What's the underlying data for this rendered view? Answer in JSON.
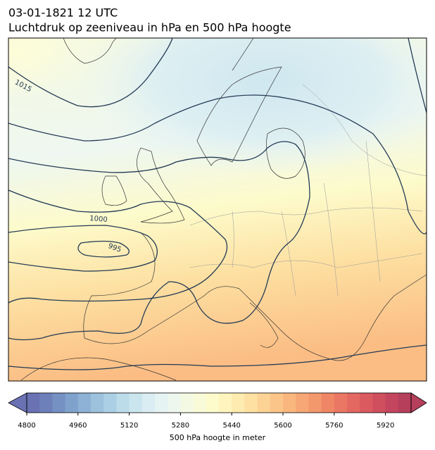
{
  "header": {
    "time": "03-01-1821 12 UTC",
    "title": "Luchtdruk op zeeniveau in hPa en 500 hPa hoogte"
  },
  "isobar_labels": [
    "1015",
    "1000",
    "995"
  ],
  "colorbar": {
    "label": "500 hPa hoogte in meter",
    "range": [
      4800,
      6000
    ],
    "ticks": [
      4800,
      4960,
      5120,
      5280,
      5440,
      5600,
      5760,
      5920
    ],
    "colors": [
      "#6a72b3",
      "#6d80ba",
      "#7590c2",
      "#7fa2cc",
      "#8db2d6",
      "#9cc2dd",
      "#abcfe4",
      "#bcdcea",
      "#cbe5ef",
      "#d9edf2",
      "#e5f3f3",
      "#eef7ee",
      "#f4f9e4",
      "#f9fbd8",
      "#fdfbcb",
      "#fef4bd",
      "#feebaf",
      "#fde0a2",
      "#fcd395",
      "#fbc589",
      "#f9b77e",
      "#f6a775",
      "#f3976d",
      "#ef8767",
      "#ea7763",
      "#e36861",
      "#da5a60",
      "#cf4f5f",
      "#c4465e",
      "#b63f5c"
    ]
  }
}
